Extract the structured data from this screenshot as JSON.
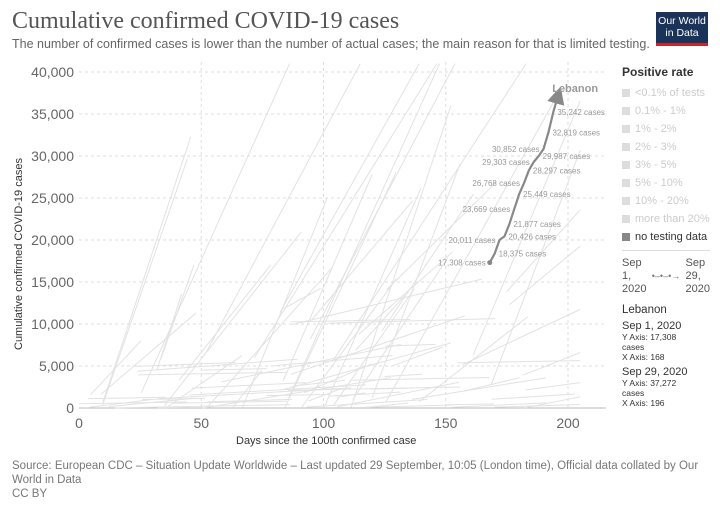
{
  "header": {
    "title": "Cumulative confirmed COVID-19 cases",
    "subtitle": "The number of confirmed cases is lower than the number of actual cases; the main reason for that is limited testing.",
    "logo_line1": "Our World",
    "logo_line2": "in Data"
  },
  "chart_data": {
    "type": "scatter",
    "xlabel": "Days since the 100th confirmed case",
    "ylabel": "Cumulative confirmed COVID-19 cases",
    "xlim": [
      0,
      215
    ],
    "ylim": [
      0,
      41000
    ],
    "x_ticks": [
      0,
      50,
      100,
      150,
      200
    ],
    "y_ticks": [
      0,
      5000,
      10000,
      15000,
      20000,
      25000,
      30000,
      35000,
      40000
    ],
    "x_tick_labels": [
      "0",
      "50",
      "100",
      "150",
      "200"
    ],
    "y_tick_labels": [
      "0",
      "5,000",
      "10,000",
      "15,000",
      "20,000",
      "25,000",
      "30,000",
      "35,000",
      "40,000"
    ],
    "grid": true,
    "series": [
      {
        "name": "Lebanon",
        "color": "#888888",
        "x": [
          168,
          170,
          172,
          174,
          176,
          178,
          180,
          182,
          184,
          186,
          188,
          190,
          192,
          194,
          196
        ],
        "y": [
          17308,
          18375,
          20011,
          20426,
          21877,
          23669,
          25449,
          26768,
          28297,
          29303,
          29987,
          30852,
          32819,
          35242,
          37272
        ],
        "labels": [
          "17,308 cases",
          "18,375 cases",
          "20,011 cases",
          "20,426 cases",
          "21,877 cases",
          "23,669 cases",
          "25,449 cases",
          "26,768 cases",
          "28,297 cases",
          "29,303 cases",
          "29,987 cases",
          "30,852 cases",
          "32,819 cases",
          "35,242 cases",
          ""
        ],
        "label_side": [
          "left",
          "right",
          "left",
          "right",
          "right",
          "left",
          "right",
          "left",
          "right",
          "left",
          "right",
          "left",
          "right",
          "right",
          "none"
        ]
      }
    ],
    "background_series_color": "#e2e2e2"
  },
  "legend": {
    "title": "Positive rate",
    "items": [
      "<0.1% of tests",
      "0.1% - 1%",
      "1% - 2%",
      "2% - 3%",
      "3% - 5%",
      "5% - 10%",
      "10% - 20%",
      "more than 20%",
      "no testing data"
    ]
  },
  "timeline": {
    "start": [
      "Sep",
      "1,",
      "2020"
    ],
    "end": [
      "Sep",
      "29,",
      "2020"
    ],
    "connector": "•–•–•→"
  },
  "tooltip": {
    "entity": "Lebanon",
    "points": [
      {
        "date": "Sep 1, 2020",
        "y": "Y Axis: 17,308",
        "unit": "cases",
        "x": "X Axis: 168"
      },
      {
        "date": "Sep 29, 2020",
        "y": "Y Axis: 37,272",
        "unit": "cases",
        "x": "X Axis: 196"
      }
    ]
  },
  "footer": {
    "source": "Source: European CDC – Situation Update Worldwide – Last updated 29 September, 10:05 (London time), Official data collated by Our World in Data",
    "license": "CC BY"
  }
}
